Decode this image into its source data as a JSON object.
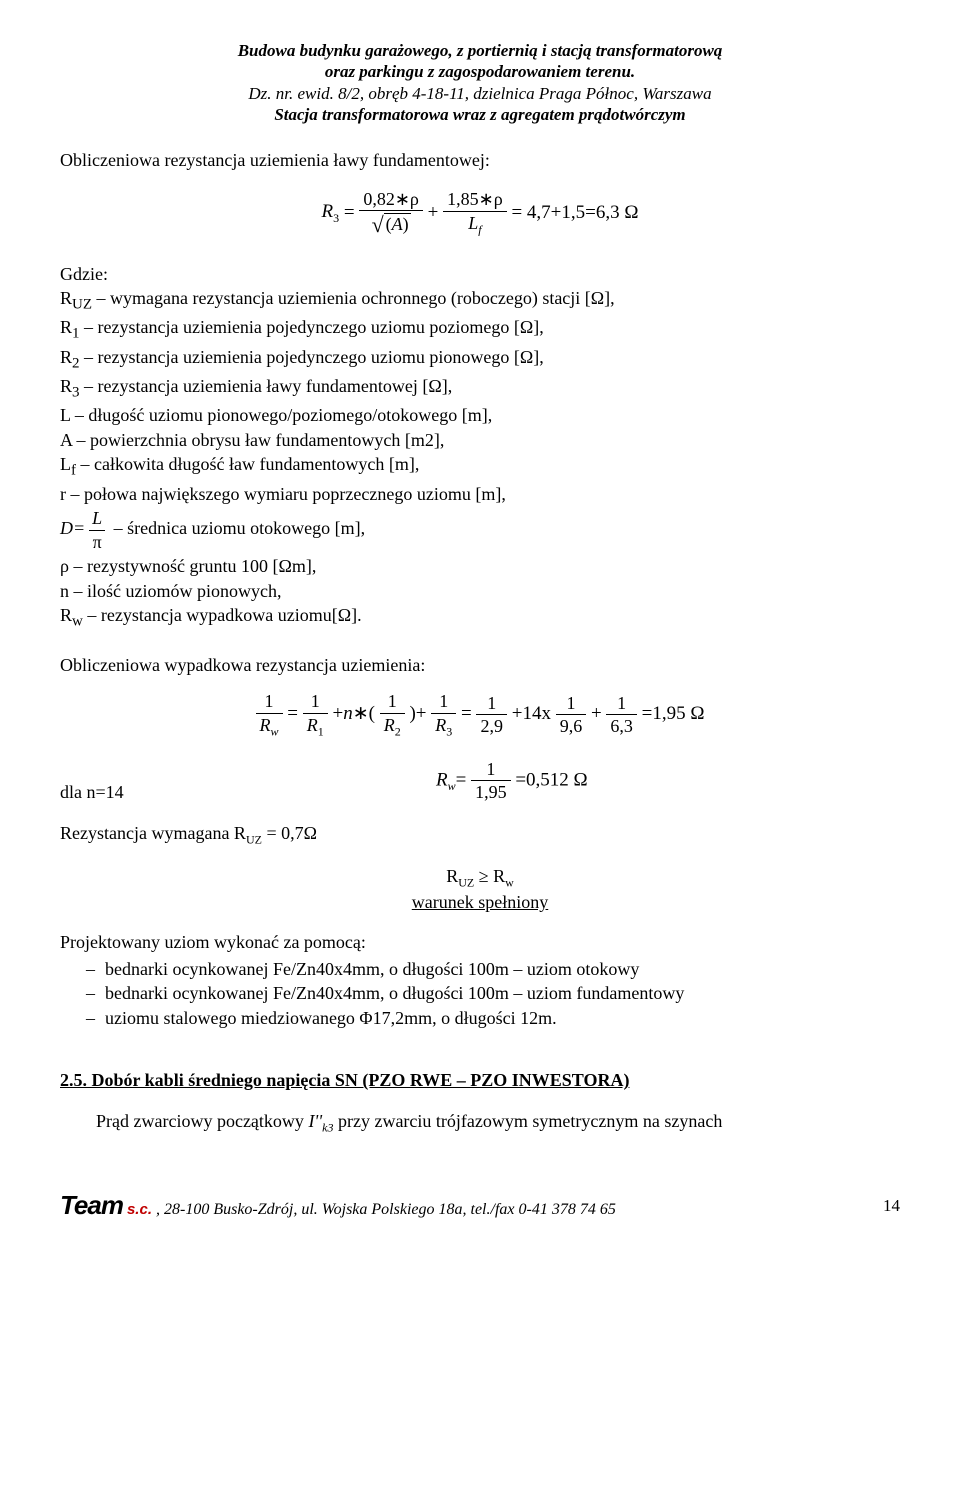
{
  "header": {
    "line1": "Budowa budynku garażowego, z portiernią i stacją transformatorową",
    "line2": "oraz parkingu z zagospodarowaniem terenu.",
    "line3": "Dz. nr. ewid. 8/2, obręb 4-18-11, dzielnica Praga Północ, Warszawa",
    "line4": "Stacja transformatorowa wraz z agregatem prądotwórczym"
  },
  "intro1": "Obliczeniowa rezystancja uziemienia ławy fundamentowej:",
  "formula1": {
    "lhs": "R",
    "lhs_sub": "3",
    "t1_num": "0,82∗ρ",
    "t1_den_inner": "A",
    "plus": "+",
    "t2_num": "1,85∗ρ",
    "t2_den": "L",
    "t2_den_sub": "f",
    "eq": "=",
    "rhs": "4,7+1,5=6,3 Ω"
  },
  "gdzie_label": "Gdzie:",
  "defs": [
    "R<sub>UZ</sub> – wymagana rezystancja uziemienia ochronnego (roboczego) stacji [Ω],",
    "R<sub>1</sub> – rezystancja uziemienia pojedynczego uziomu poziomego [Ω],",
    "R<sub>2</sub> – rezystancja uziemienia pojedynczego uziomu pionowego [Ω],",
    "R<sub>3</sub> – rezystancja uziemienia ławy fundamentowej [Ω],",
    "L – długość uziomu pionowego/poziomego/otokowego [m],",
    "A – powierzchnia obrysu ław fundamentowych [m2],",
    "L<sub>f</sub> – całkowita długość ław fundamentowych [m],",
    "r  – połowa największego wymiaru poprzecznego uziomu [m],"
  ],
  "def_d_lhs": "D=",
  "def_d_num": "L",
  "def_d_den": "π",
  "def_d_rhs": "  – średnica uziomu otokowego [m],",
  "defs2": [
    "ρ – rezystywność gruntu 100 [Ωm],",
    "n – ilość uziomów pionowych,",
    "R<sub>w</sub> – rezystancja wypadkowa uziomu[Ω]."
  ],
  "intro2": "Obliczeniowa wypadkowa rezystancja uziemienia:",
  "formula2": {
    "f1_num": "1",
    "f1_den": "R",
    "f1_den_sub": "w",
    "eq1": "=",
    "f2_num": "1",
    "f2_den": "R",
    "f2_den_sub": "1",
    "plus1": "+",
    "n": "n",
    "ast": "∗(",
    "f3_num": "1",
    "f3_den": "R",
    "f3_den_sub": "2",
    "close": ")+",
    "f4_num": "1",
    "f4_den": "R",
    "f4_den_sub": "3",
    "eq2": "=",
    "f5_num": "1",
    "f5_den": "2,9",
    "plus2": "+",
    "mid": "14x",
    "f6_num": "1",
    "f6_den": "9,6",
    "plus3": "+",
    "f7_num": "1",
    "f7_den": "6,3",
    "eq3": "=",
    "result": "1,95 Ω"
  },
  "formula3": {
    "lhs": "R",
    "lhs_sub": "w",
    "eq": "=",
    "num": "1",
    "den": "1,95",
    "eq2": "=",
    "rhs": "0,512 Ω"
  },
  "dla": "dla n=14",
  "req": "Rezystancja wymagana R",
  "req_sub": "UZ",
  "req_val": " = 0,7Ω",
  "cond_ineq_l": "R",
  "cond_ineq_lsub": "UZ",
  "cond_ineq_sym": " ≥ R",
  "cond_ineq_rsub": "w",
  "cond_text": "warunek spełniony",
  "proj_intro": "Projektowany uziom wykonać za pomocą:",
  "bullets": [
    "bednarki ocynkowanej Fe/Zn40x4mm, o długości 100m – uziom otokowy",
    "bednarki ocynkowanej Fe/Zn40x4mm, o długości 100m – uziom fundamentowy",
    "uziomu stalowego miedziowanego Φ17,2mm, o długości 12m."
  ],
  "sec25": "2.5.  Dobór kabli średniego napięcia SN (PZO RWE – PZO INWESTORA)",
  "last_para_pre": "Prąd zwarciowy początkowy ",
  "last_para_sym": "I''",
  "last_para_sub": "k3",
  "last_para_post": " przy zwarciu trójfazowym symetrycznym na szynach",
  "footer": {
    "team": "Team",
    "sc": "s.c.",
    "addr": ", 28-100 Busko-Zdrój, ul. Wojska Polskiego 18a, tel./fax 0-41 378 74 65",
    "page": "14"
  },
  "colors": {
    "text": "#000000",
    "background": "#ffffff",
    "accent_red": "#c00000"
  }
}
